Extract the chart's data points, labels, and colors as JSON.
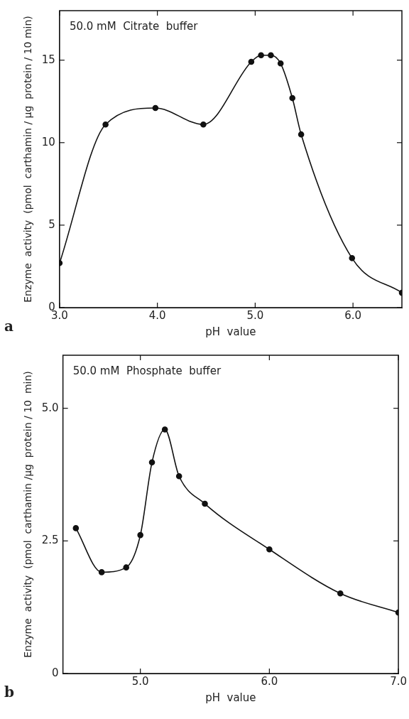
{
  "chart_data": [
    {
      "type": "line",
      "xlabel": "pH  value",
      "ylabel": "Enzyme  activity  (pmol  carthamin / µg  protein / 10 min)",
      "annotations": [
        "50.0 mM  Citrate  buffer",
        "a"
      ],
      "x": [
        3.0,
        3.47,
        3.98,
        4.47,
        4.96,
        5.06,
        5.16,
        5.26,
        5.38,
        5.47,
        5.99,
        6.5
      ],
      "series": [
        {
          "color": "#111111",
          "values": [
            2.7,
            11.1,
            12.1,
            11.1,
            14.9,
            15.3,
            15.3,
            14.8,
            12.7,
            10.5,
            3.0,
            0.9
          ]
        }
      ],
      "xlim": [
        3.0,
        6.5
      ],
      "ylim": [
        0,
        18
      ],
      "xticks": [
        {
          "value": 3,
          "label": "3.0"
        },
        {
          "value": 4,
          "label": "4.0"
        },
        {
          "value": 5,
          "label": "5.0"
        },
        {
          "value": 6,
          "label": "6.0"
        }
      ],
      "yticks": [
        0,
        5,
        10,
        15
      ],
      "marker": "circle",
      "line_style": "solid",
      "grid": false,
      "legend": false
    },
    {
      "type": "line",
      "xlabel": "pH  value",
      "ylabel": "Enzyme  activity  (pmol  carthamin /µg  protein / 10  min)",
      "annotations": [
        "50.0 mM  Phosphate  buffer",
        "b"
      ],
      "x": [
        4.5,
        4.7,
        4.89,
        5.0,
        5.09,
        5.19,
        5.3,
        5.5,
        6.0,
        6.55,
        7.0
      ],
      "series": [
        {
          "color": "#111111",
          "values": [
            2.74,
            1.91,
            2.0,
            2.61,
            3.98,
            4.6,
            3.72,
            3.2,
            2.34,
            1.51,
            1.15
          ]
        }
      ],
      "xlim": [
        4.4,
        7.0
      ],
      "ylim": [
        0,
        6
      ],
      "xticks": [
        {
          "value": 5,
          "label": "5.0"
        },
        {
          "value": 6,
          "label": "6.0"
        },
        {
          "value": 7,
          "label": "7.0"
        }
      ],
      "yticks": [
        0,
        {
          "value": 2.5,
          "label": "2.5"
        },
        {
          "value": 5,
          "label": "5.0"
        }
      ],
      "marker": "circle",
      "line_style": "solid",
      "grid": false,
      "legend": false
    }
  ]
}
